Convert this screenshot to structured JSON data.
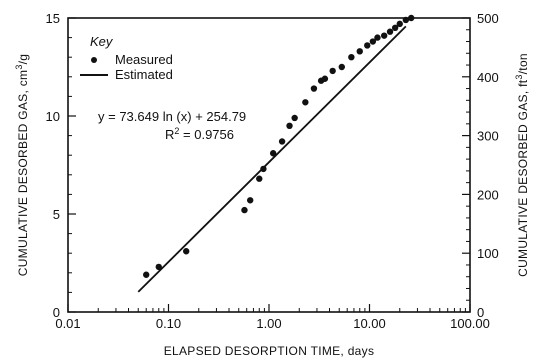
{
  "chart_data": {
    "type": "scatter",
    "x_scale": "log",
    "xlim": [
      0.01,
      100
    ],
    "ylim_left": [
      0,
      15
    ],
    "ylim_right": [
      0,
      500
    ],
    "x_ticks": [
      "0.01",
      "0.10",
      "1.00",
      "10.00",
      "100.00"
    ],
    "y_left_ticks": [
      "0",
      "5",
      "10",
      "15"
    ],
    "y_right_ticks": [
      "0",
      "100",
      "200",
      "300",
      "400",
      "500"
    ],
    "xlabel": "ELAPSED DESORPTION TIME, days",
    "ylabel_left": "CUMULATIVE DESORBED GAS, cm",
    "ylabel_left_unit_sup": "3",
    "ylabel_left_unit_tail": "/g",
    "ylabel_right": "CUMULATIVE DESORBED GAS, ft",
    "ylabel_right_unit_sup": "3",
    "ylabel_right_unit_tail": "/ton",
    "legend": {
      "title": "Key",
      "placement": "top-left",
      "measured_label": "Measured",
      "estimated_label": "Estimated"
    },
    "equation": "y = 73.649 ln (x) + 254.79",
    "r2_label": "R",
    "r2_sup": "2",
    "r2_value": " = 0.9756",
    "measured": [
      {
        "x": 0.06,
        "y": 1.9
      },
      {
        "x": 0.08,
        "y": 2.3
      },
      {
        "x": 0.15,
        "y": 3.1
      },
      {
        "x": 0.57,
        "y": 5.2
      },
      {
        "x": 0.65,
        "y": 5.7
      },
      {
        "x": 0.8,
        "y": 6.8
      },
      {
        "x": 0.88,
        "y": 7.3
      },
      {
        "x": 1.1,
        "y": 8.1
      },
      {
        "x": 1.35,
        "y": 8.7
      },
      {
        "x": 1.6,
        "y": 9.5
      },
      {
        "x": 1.8,
        "y": 9.9
      },
      {
        "x": 2.3,
        "y": 10.7
      },
      {
        "x": 2.8,
        "y": 11.4
      },
      {
        "x": 3.3,
        "y": 11.8
      },
      {
        "x": 3.6,
        "y": 11.9
      },
      {
        "x": 4.3,
        "y": 12.3
      },
      {
        "x": 5.3,
        "y": 12.5
      },
      {
        "x": 6.6,
        "y": 13.0
      },
      {
        "x": 8.0,
        "y": 13.3
      },
      {
        "x": 9.5,
        "y": 13.6
      },
      {
        "x": 10.8,
        "y": 13.8
      },
      {
        "x": 12.0,
        "y": 14.0
      },
      {
        "x": 14.0,
        "y": 14.1
      },
      {
        "x": 16.0,
        "y": 14.3
      },
      {
        "x": 18.0,
        "y": 14.5
      },
      {
        "x": 20.0,
        "y": 14.7
      },
      {
        "x": 23.0,
        "y": 14.9
      },
      {
        "x": 26.0,
        "y": 15.0
      }
    ],
    "estimated_line": {
      "y_units": "ft3/ton",
      "a": 73.649,
      "b": 254.79,
      "x_start": 0.05,
      "x_end": 23
    }
  }
}
